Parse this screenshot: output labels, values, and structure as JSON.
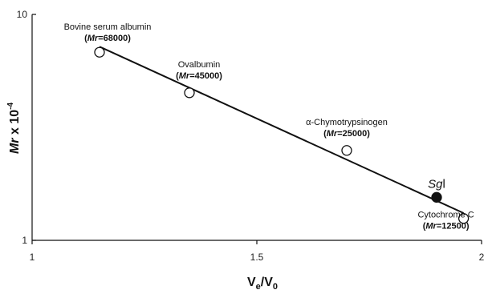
{
  "chart_data": {
    "type": "scatter",
    "xlabel": "V",
    "xlabel_sub_e": "e",
    "xlabel_sep": "/V",
    "xlabel_sub_0": "0",
    "ylabel_italic": "Mr",
    "ylabel_rest": " x 10",
    "ylabel_exp": "-4",
    "x_scale": "linear",
    "y_scale": "log",
    "xlim": [
      1,
      2
    ],
    "ylim": [
      1,
      10
    ],
    "x_ticks": [
      {
        "value": 1,
        "label": "1"
      },
      {
        "value": 1.5,
        "label": "1.5"
      },
      {
        "value": 2,
        "label": "2"
      }
    ],
    "y_ticks": [
      {
        "value": 1,
        "label": "1"
      },
      {
        "value": 10,
        "label": "10"
      }
    ],
    "grid": false,
    "legend": "none",
    "points": [
      {
        "x": 1.15,
        "y": 6.8,
        "marker": "open",
        "label": "Bovine serum albumin",
        "sub_italic": "Mr",
        "sub_rest": "=68000"
      },
      {
        "x": 1.35,
        "y": 4.5,
        "marker": "open",
        "label": "Ovalbumin",
        "sub_italic": "Mr",
        "sub_rest": "=45000"
      },
      {
        "x": 1.7,
        "y": 2.5,
        "marker": "open",
        "label": "α-Chymotrypsinogen",
        "sub_italic": "Mr",
        "sub_rest": "=25000"
      },
      {
        "x": 1.96,
        "y": 1.25,
        "marker": "open",
        "label": "Cytochrome C",
        "sub_italic": "Mr",
        "sub_rest": "=12500"
      },
      {
        "x": 1.9,
        "y": 1.55,
        "marker": "filled",
        "label_italic": "Sg",
        "label_rest": "l"
      }
    ],
    "fit_line": {
      "x": [
        1.15,
        1.96
      ],
      "y": [
        7.2,
        1.32
      ]
    },
    "colors": {
      "line": "#111111",
      "open_fill": "#ffffff",
      "filled_fill": "#111111"
    }
  }
}
